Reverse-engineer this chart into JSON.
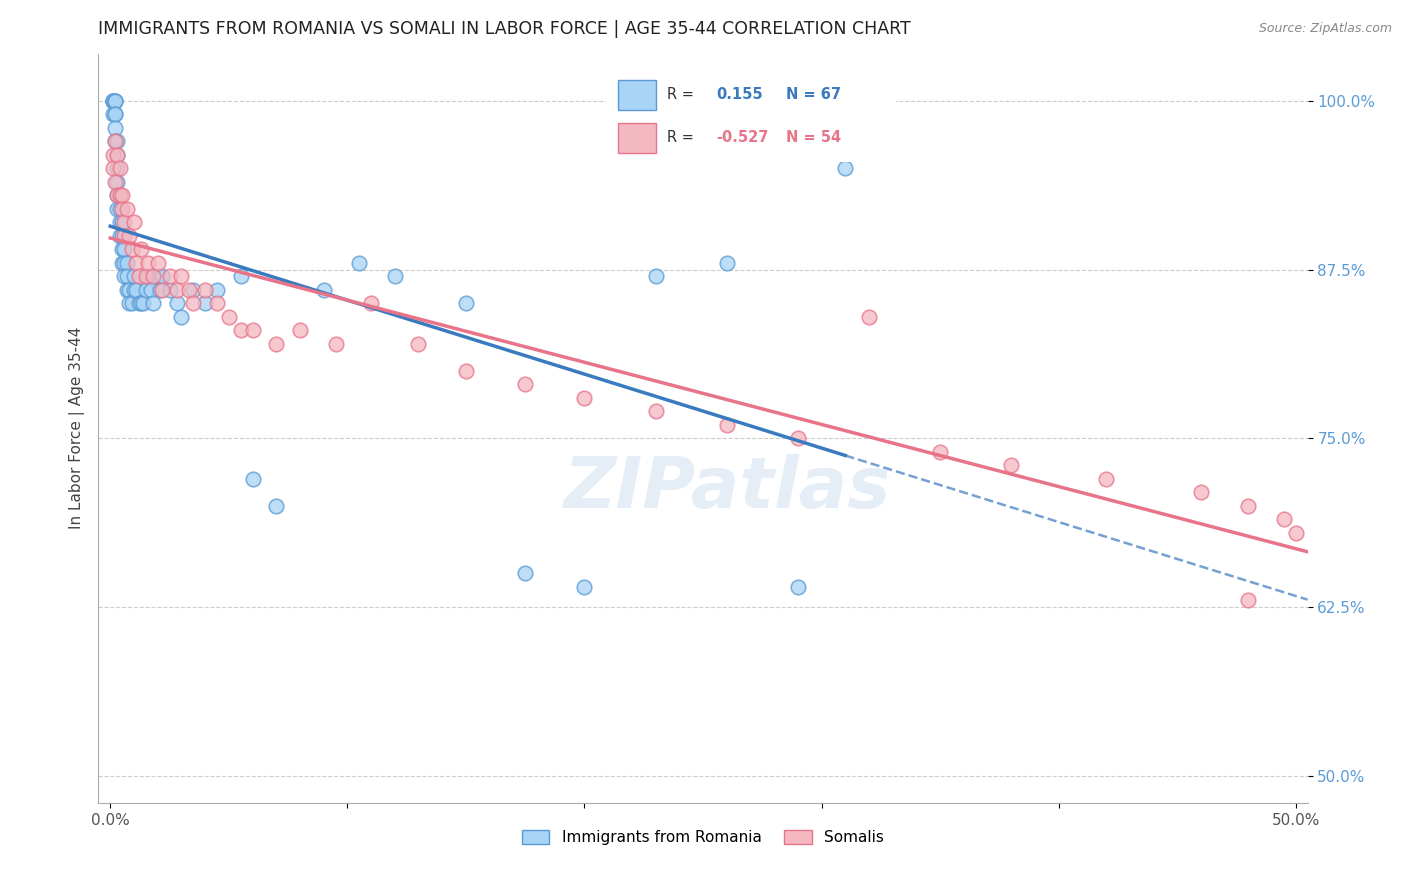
{
  "title": "IMMIGRANTS FROM ROMANIA VS SOMALI IN LABOR FORCE | AGE 35-44 CORRELATION CHART",
  "source": "Source: ZipAtlas.com",
  "ylabel": "In Labor Force | Age 35-44",
  "ylabel_ticks": [
    "100.0%",
    "87.5%",
    "75.0%",
    "62.5%",
    "50.0%"
  ],
  "ylabel_vals": [
    1.0,
    0.875,
    0.75,
    0.625,
    0.5
  ],
  "xlim": [
    -0.005,
    0.505
  ],
  "ylim": [
    0.48,
    1.035
  ],
  "romania_color": "#a8d4f5",
  "somali_color": "#f4b8c1",
  "romania_edge_color": "#5b9bd5",
  "somali_edge_color": "#e8748a",
  "romania_line_color": "#3a7abf",
  "somali_line_color": "#e8748a",
  "watermark": "ZIPatlas",
  "romania_x": [
    0.001,
    0.001,
    0.001,
    0.001,
    0.001,
    0.002,
    0.002,
    0.002,
    0.002,
    0.002,
    0.002,
    0.002,
    0.003,
    0.003,
    0.003,
    0.003,
    0.003,
    0.003,
    0.004,
    0.004,
    0.004,
    0.004,
    0.005,
    0.005,
    0.005,
    0.005,
    0.006,
    0.006,
    0.006,
    0.007,
    0.007,
    0.007,
    0.008,
    0.008,
    0.009,
    0.01,
    0.01,
    0.011,
    0.012,
    0.013,
    0.014,
    0.015,
    0.016,
    0.017,
    0.018,
    0.02,
    0.021,
    0.022,
    0.025,
    0.028,
    0.03,
    0.035,
    0.04,
    0.045,
    0.055,
    0.06,
    0.07,
    0.09,
    0.105,
    0.12,
    0.15,
    0.175,
    0.2,
    0.23,
    0.26,
    0.29,
    0.31
  ],
  "romania_y": [
    1.0,
    1.0,
    1.0,
    1.0,
    0.99,
    1.0,
    1.0,
    1.0,
    0.99,
    0.99,
    0.98,
    0.97,
    0.97,
    0.96,
    0.95,
    0.94,
    0.93,
    0.92,
    0.93,
    0.92,
    0.91,
    0.9,
    0.91,
    0.9,
    0.89,
    0.88,
    0.89,
    0.88,
    0.87,
    0.88,
    0.87,
    0.86,
    0.86,
    0.85,
    0.85,
    0.87,
    0.86,
    0.86,
    0.85,
    0.85,
    0.85,
    0.86,
    0.87,
    0.86,
    0.85,
    0.87,
    0.86,
    0.87,
    0.86,
    0.85,
    0.84,
    0.86,
    0.85,
    0.86,
    0.87,
    0.72,
    0.7,
    0.86,
    0.88,
    0.87,
    0.85,
    0.65,
    0.64,
    0.87,
    0.88,
    0.64,
    0.95
  ],
  "somali_x": [
    0.001,
    0.001,
    0.002,
    0.002,
    0.003,
    0.003,
    0.004,
    0.004,
    0.005,
    0.005,
    0.006,
    0.006,
    0.007,
    0.008,
    0.009,
    0.01,
    0.011,
    0.012,
    0.013,
    0.015,
    0.016,
    0.018,
    0.02,
    0.022,
    0.025,
    0.028,
    0.03,
    0.033,
    0.035,
    0.04,
    0.045,
    0.05,
    0.055,
    0.06,
    0.07,
    0.08,
    0.095,
    0.11,
    0.13,
    0.15,
    0.175,
    0.2,
    0.23,
    0.26,
    0.29,
    0.32,
    0.35,
    0.38,
    0.42,
    0.46,
    0.48,
    0.495,
    0.5,
    0.48
  ],
  "somali_y": [
    0.96,
    0.95,
    0.97,
    0.94,
    0.96,
    0.93,
    0.95,
    0.93,
    0.93,
    0.92,
    0.91,
    0.9,
    0.92,
    0.9,
    0.89,
    0.91,
    0.88,
    0.87,
    0.89,
    0.87,
    0.88,
    0.87,
    0.88,
    0.86,
    0.87,
    0.86,
    0.87,
    0.86,
    0.85,
    0.86,
    0.85,
    0.84,
    0.83,
    0.83,
    0.82,
    0.83,
    0.82,
    0.85,
    0.82,
    0.8,
    0.79,
    0.78,
    0.77,
    0.76,
    0.75,
    0.84,
    0.74,
    0.73,
    0.72,
    0.71,
    0.7,
    0.69,
    0.68,
    0.63
  ]
}
